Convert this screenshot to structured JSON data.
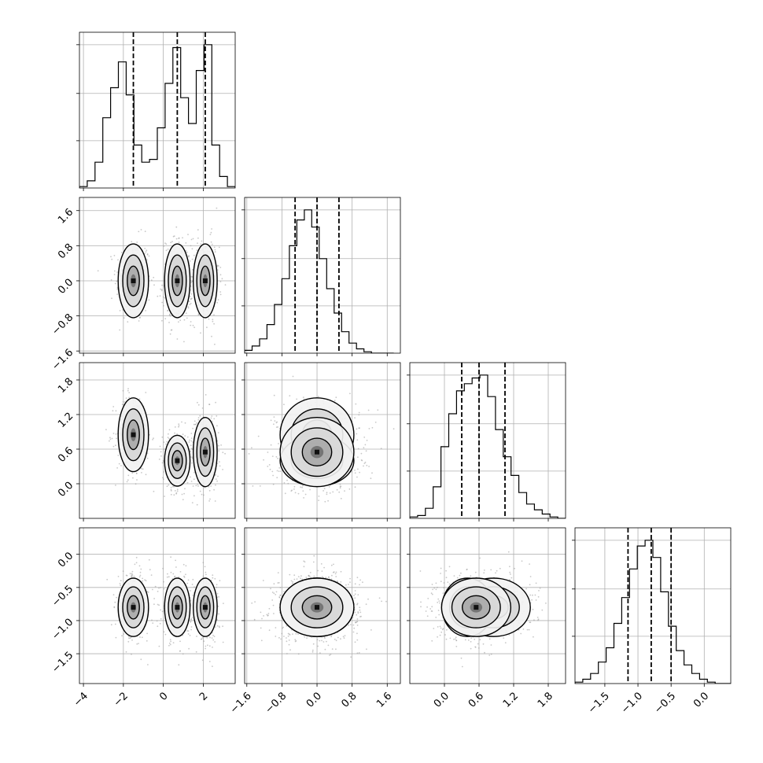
{
  "chart_data": {
    "type": "corner",
    "title": "",
    "grid": true,
    "params": [
      {
        "range": [
          -4.2,
          3.6
        ],
        "ticks": [
          -4,
          -2,
          0,
          2
        ],
        "tick_labels": [
          "−4",
          "−2",
          "0",
          "2"
        ],
        "quantiles": [
          -1.5,
          0.7,
          2.1
        ],
        "histogram": {
          "edges_start": -4.2,
          "bin_width": 0.39,
          "counts": [
            0.01,
            0.05,
            0.18,
            0.49,
            0.7,
            0.88,
            0.65,
            0.3,
            0.18,
            0.2,
            0.42,
            0.73,
            0.98,
            0.63,
            0.45,
            0.82,
            1.0,
            0.3,
            0.08,
            0.01
          ]
        }
      },
      {
        "range": [
          -1.65,
          1.9
        ],
        "ticks": [
          -1.6,
          -0.8,
          0.0,
          0.8,
          1.6
        ],
        "tick_labels": [
          "−1.6",
          "−0.8",
          "0.0",
          "0.8",
          "1.6"
        ],
        "quantiles": [
          -0.5,
          0.0,
          0.5
        ],
        "histogram": {
          "edges_start": -1.65,
          "bin_width": 0.17,
          "counts": [
            0.02,
            0.05,
            0.1,
            0.2,
            0.34,
            0.52,
            0.75,
            0.93,
            1.0,
            0.88,
            0.66,
            0.45,
            0.28,
            0.15,
            0.07,
            0.03,
            0.01,
            0.0,
            0.0,
            0.0
          ]
        }
      },
      {
        "range": [
          -0.6,
          2.1
        ],
        "ticks": [
          0.0,
          0.6,
          1.2,
          1.8
        ],
        "tick_labels": [
          "0.0",
          "0.6",
          "1.2",
          "1.8"
        ],
        "quantiles": [
          0.3,
          0.6,
          1.05
        ],
        "histogram": {
          "edges_start": -0.6,
          "bin_width": 0.135,
          "counts": [
            0.01,
            0.02,
            0.07,
            0.22,
            0.5,
            0.73,
            0.89,
            0.94,
            0.98,
            1.0,
            0.85,
            0.62,
            0.43,
            0.3,
            0.18,
            0.1,
            0.06,
            0.03,
            0.01,
            0.0
          ]
        }
      },
      {
        "range": [
          -1.95,
          0.4
        ],
        "ticks": [
          -1.5,
          -1.0,
          -0.5,
          0.0
        ],
        "tick_labels": [
          "−1.5",
          "−1.0",
          "−0.5",
          "0.0"
        ],
        "quantiles": [
          -1.15,
          -0.8,
          -0.5
        ],
        "histogram": {
          "edges_start": -1.95,
          "bin_width": 0.1175,
          "counts": [
            0.01,
            0.03,
            0.07,
            0.15,
            0.25,
            0.42,
            0.6,
            0.8,
            0.96,
            1.0,
            0.88,
            0.64,
            0.4,
            0.23,
            0.13,
            0.07,
            0.03,
            0.01,
            0.0,
            0.0
          ]
        }
      }
    ],
    "clusters": [
      {
        "center": [
          -1.5,
          0.0,
          0.85,
          -0.8
        ],
        "spread": [
          0.38,
          0.42,
          0.32,
          0.22
        ]
      },
      {
        "center": [
          0.7,
          0.0,
          0.4,
          -0.8
        ],
        "spread": [
          0.32,
          0.42,
          0.22,
          0.22
        ]
      },
      {
        "center": [
          2.1,
          0.0,
          0.55,
          -0.8
        ],
        "spread": [
          0.3,
          0.42,
          0.3,
          0.22
        ]
      }
    ]
  }
}
